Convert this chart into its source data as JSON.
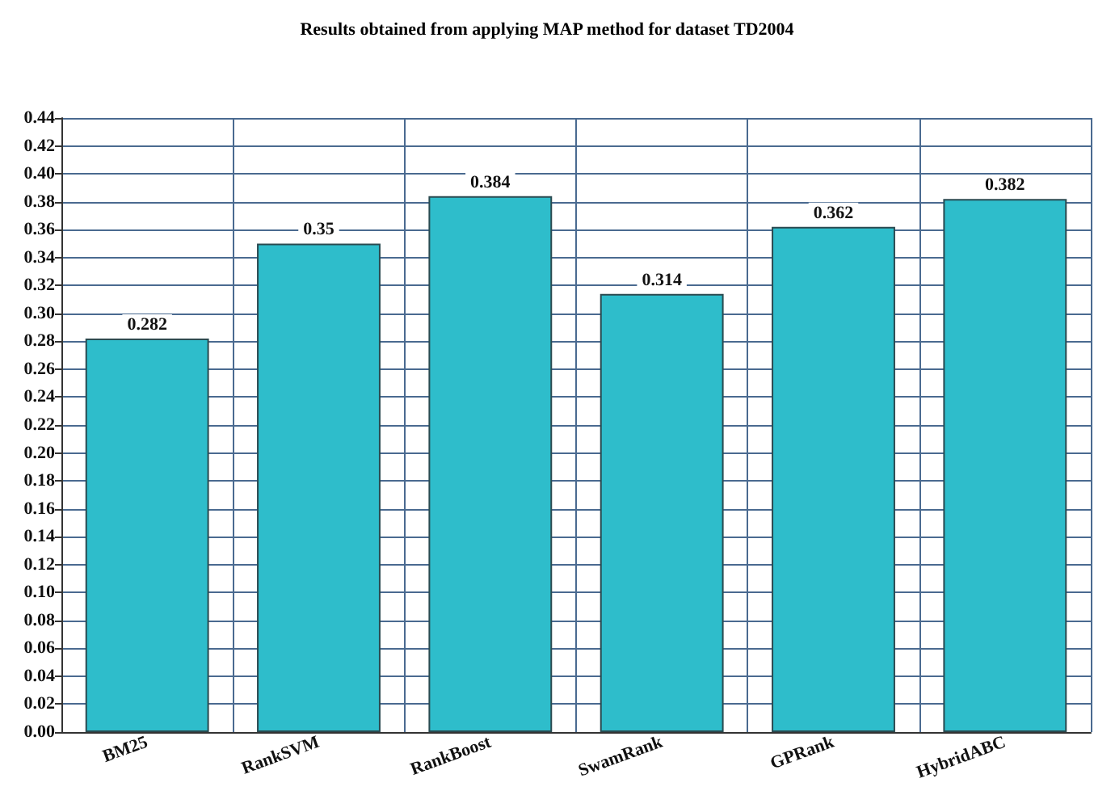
{
  "chart_data": {
    "type": "bar",
    "title": "Results obtained from applying MAP method for dataset TD2004",
    "categories": [
      "BM25",
      "RankSVM",
      "RankBoost",
      "SwamRank",
      "GPRank",
      "HybridABC"
    ],
    "values": [
      0.282,
      0.35,
      0.384,
      0.314,
      0.362,
      0.382
    ],
    "color": "#2ebdcb",
    "ylim": [
      0,
      0.44
    ],
    "yticks": [
      "0.00",
      "0.02",
      "0.04",
      "0.06",
      "0.08",
      "0.10",
      "0.12",
      "0.14",
      "0.16",
      "0.18",
      "0.20",
      "0.22",
      "0.24",
      "0.26",
      "0.28",
      "0.30",
      "0.32",
      "0.34",
      "0.36",
      "0.38",
      "0.40",
      "0.42",
      "0.44"
    ],
    "grid": true,
    "data_labels": true
  }
}
